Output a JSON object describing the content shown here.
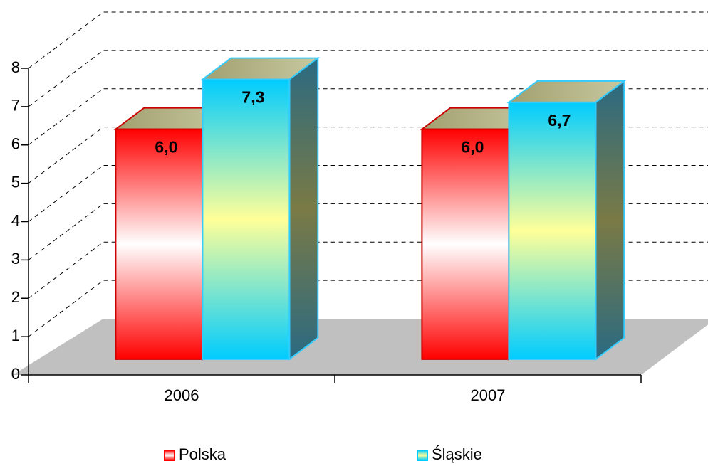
{
  "chart_data": {
    "type": "bar3d",
    "categories": [
      "2006",
      "2007"
    ],
    "series": [
      {
        "name": "Polska",
        "color": "#ff0000",
        "values": [
          6.0,
          6.0
        ],
        "value_labels": [
          "6,0",
          "6,0"
        ]
      },
      {
        "name": "Śląskie",
        "color": "#00ccff",
        "values": [
          7.3,
          6.7
        ],
        "value_labels": [
          "7,3",
          "6,7"
        ]
      }
    ],
    "ylim": [
      0,
      8
    ],
    "yticks": [
      0,
      1,
      2,
      3,
      4,
      5,
      6,
      7,
      8
    ],
    "grid": true,
    "legend": "bottom"
  }
}
